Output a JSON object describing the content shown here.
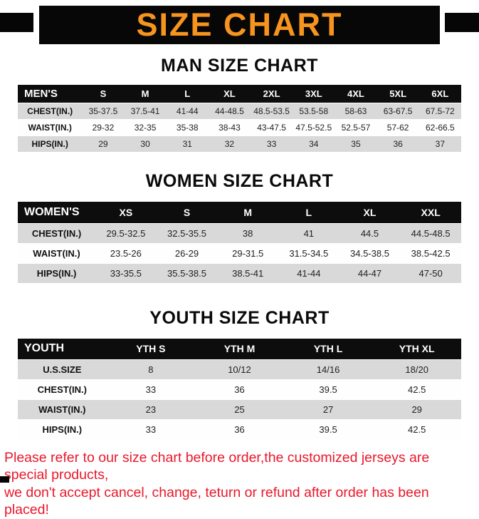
{
  "banner": {
    "title": "SIZE CHART"
  },
  "colors": {
    "banner_bg": "#070707",
    "banner_text": "#f7941e",
    "table_header_bg": "#0d0d0d",
    "row_shade": "#d9d9d9",
    "footer_text": "#e8192c"
  },
  "sections": [
    {
      "heading": "MAN SIZE CHART",
      "table": {
        "header": [
          "MEN'S",
          "S",
          "M",
          "L",
          "XL",
          "2XL",
          "3XL",
          "4XL",
          "5XL",
          "6XL"
        ],
        "rows": [
          [
            "CHEST(IN.)",
            "35-37.5",
            "37.5-41",
            "41-44",
            "44-48.5",
            "48.5-53.5",
            "53.5-58",
            "58-63",
            "63-67.5",
            "67.5-72"
          ],
          [
            "WAIST(IN.)",
            "29-32",
            "32-35",
            "35-38",
            "38-43",
            "43-47.5",
            "47.5-52.5",
            "52.5-57",
            "57-62",
            "62-66.5"
          ],
          [
            "HIPS(IN.)",
            "29",
            "30",
            "31",
            "32",
            "33",
            "34",
            "35",
            "36",
            "37"
          ]
        ]
      }
    },
    {
      "heading": "WOMEN SIZE CHART",
      "table": {
        "header": [
          "WOMEN'S",
          "XS",
          "S",
          "M",
          "L",
          "XL",
          "XXL"
        ],
        "rows": [
          [
            "CHEST(IN.)",
            "29.5-32.5",
            "32.5-35.5",
            "38",
            "41",
            "44.5",
            "44.5-48.5"
          ],
          [
            "WAIST(IN.)",
            "23.5-26",
            "26-29",
            "29-31.5",
            "31.5-34.5",
            "34.5-38.5",
            "38.5-42.5"
          ],
          [
            "HIPS(IN.)",
            "33-35.5",
            "35.5-38.5",
            "38.5-41",
            "41-44",
            "44-47",
            "47-50"
          ]
        ]
      }
    },
    {
      "heading": "YOUTH SIZE CHART",
      "table": {
        "header": [
          "YOUTH",
          "YTH S",
          "YTH M",
          "YTH L",
          "YTH XL"
        ],
        "rows": [
          [
            "U.S.SIZE",
            "8",
            "10/12",
            "14/16",
            "18/20"
          ],
          [
            "CHEST(IN.)",
            "33",
            "36",
            "39.5",
            "42.5"
          ],
          [
            "WAIST(IN.)",
            "23",
            "25",
            "27",
            "29"
          ],
          [
            "HIPS(IN.)",
            "33",
            "36",
            "39.5",
            "42.5"
          ]
        ]
      }
    }
  ],
  "footer": {
    "line1": "Please refer to our size chart before order,the customized jerseys are special products,",
    "line2": "we don't accept cancel, change, teturn or refund after order has been placed!"
  }
}
